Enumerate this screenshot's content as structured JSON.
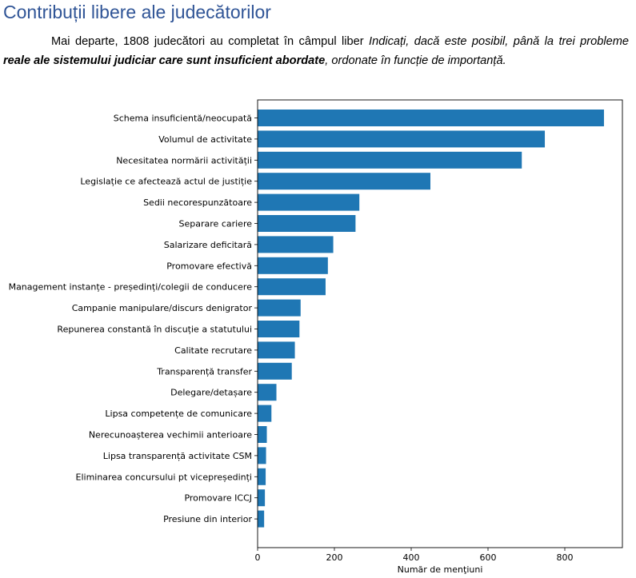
{
  "document": {
    "heading": "Contribuții libere ale judecătorilor",
    "paragraph": {
      "part1": "Mai departe, 1808 judecători au completat în câmpul liber ",
      "part2_italic": "Indicați, dacă este posibil, până la trei probleme ",
      "part3_bold_italic": "reale ale sistemului judiciar care sunt insuficient abordate",
      "part4_italic": ", ordonate în funcție de importanță."
    }
  },
  "chart_data": {
    "type": "bar",
    "orientation": "horizontal",
    "xlabel": "Număr de menţiuni",
    "xlim": [
      0,
      950
    ],
    "xticks": [
      0,
      200,
      400,
      600,
      800
    ],
    "bar_color": "#1f77b4",
    "grid": false,
    "categories": [
      "Schema insuficientă/neocupată",
      "Volumul de activitate",
      "Necesitatea normării activității",
      "Legislație ce afectează actul de justiție",
      "Sedii necorespunzătoare",
      "Separare cariere",
      "Salarizare deficitară",
      "Promovare efectivă",
      "Management instanțe - președinți/colegii de conducere",
      "Campanie manipulare/discurs denigrator",
      "Repunerea constantă în discuție a statutului",
      "Calitate recrutare",
      "Transparență transfer",
      "Delegare/detașare",
      "Lipsa competențe de comunicare",
      "Nerecunoașterea vechimii anterioare",
      "Lipsa transparență activitate CSM",
      "Eliminarea concursului pt vicepreședinți",
      "Promovare ICCJ",
      "Presiune din interior"
    ],
    "values": [
      902,
      748,
      688,
      450,
      265,
      255,
      197,
      183,
      177,
      112,
      109,
      97,
      89,
      49,
      36,
      24,
      22,
      21,
      19,
      17
    ]
  }
}
